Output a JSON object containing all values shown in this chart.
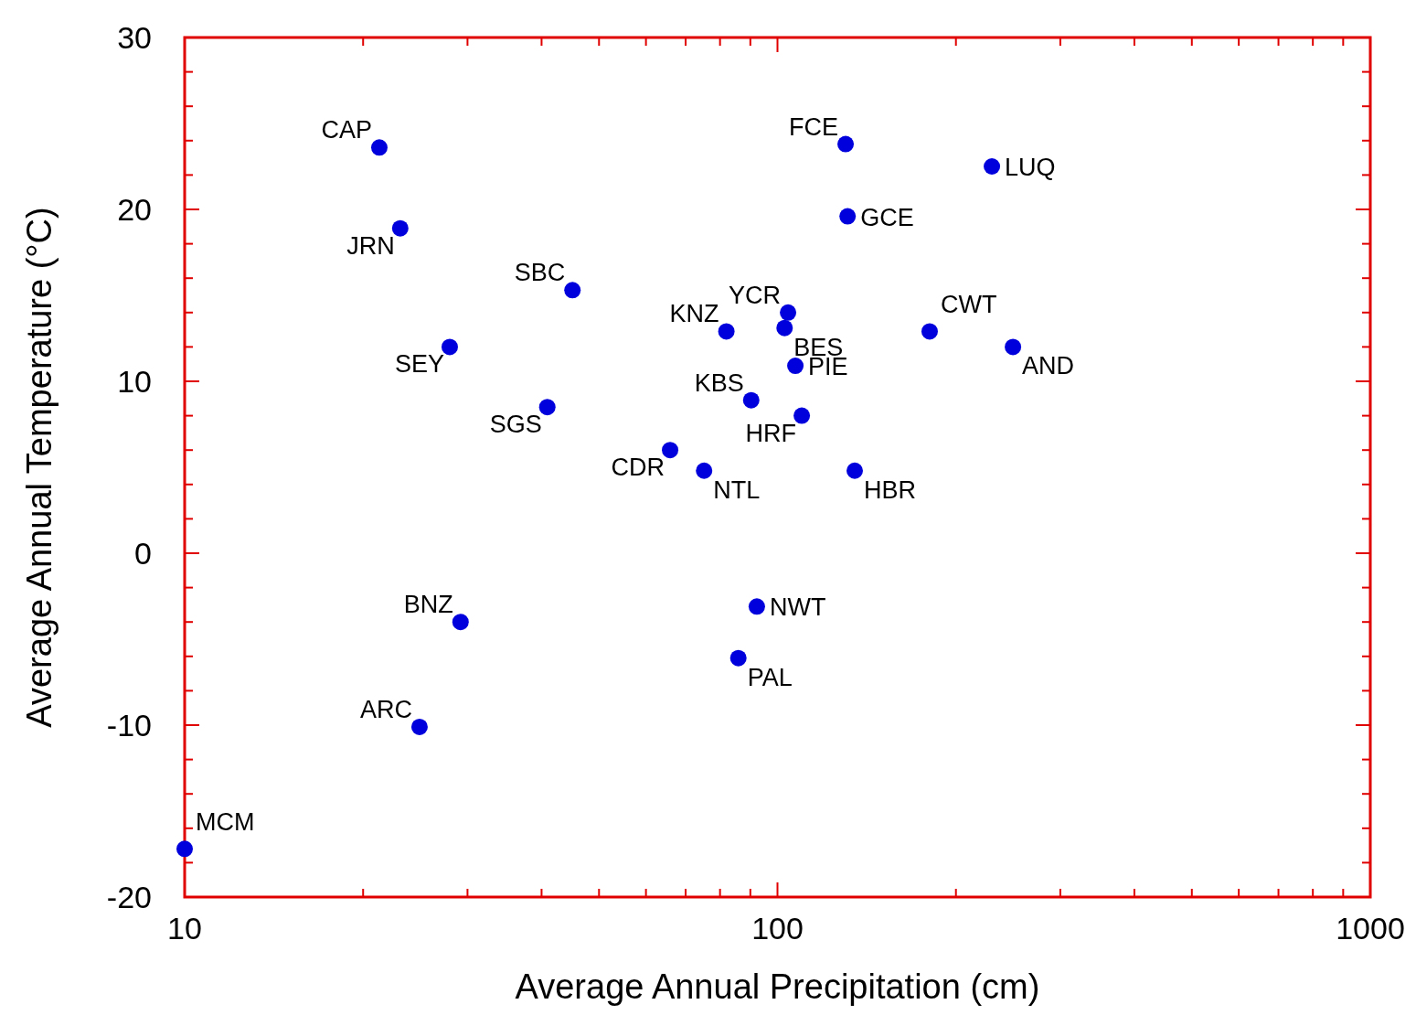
{
  "chart_data": {
    "type": "scatter",
    "xlabel": "Average Annual Precipitation (cm)",
    "ylabel": "Average Annual Temperature (°C)",
    "log": "x",
    "grid": false,
    "marker": "circle",
    "xlim": [
      10,
      1000
    ],
    "ylim": [
      -20,
      30
    ],
    "xticks": [
      10,
      {
        "value": 20,
        "label": null
      },
      {
        "value": 30,
        "label": null
      },
      {
        "value": 40,
        "label": null
      },
      {
        "value": 50,
        "label": null
      },
      {
        "value": 60,
        "label": null
      },
      {
        "value": 70,
        "label": null
      },
      {
        "value": 80,
        "label": null
      },
      {
        "value": 90,
        "label": null
      },
      100,
      {
        "value": 200,
        "label": null
      },
      {
        "value": 300,
        "label": null
      },
      {
        "value": 400,
        "label": null
      },
      {
        "value": 500,
        "label": null
      },
      {
        "value": 600,
        "label": null
      },
      {
        "value": 700,
        "label": null
      },
      {
        "value": 800,
        "label": null
      },
      {
        "value": 900,
        "label": null
      },
      1000
    ],
    "yticks": [
      -20,
      {
        "value": -18,
        "label": null
      },
      {
        "value": -16,
        "label": null
      },
      {
        "value": -14,
        "label": null
      },
      {
        "value": -12,
        "label": null
      },
      -10,
      {
        "value": -8,
        "label": null
      },
      {
        "value": -6,
        "label": null
      },
      {
        "value": -4,
        "label": null
      },
      {
        "value": -2,
        "label": null
      },
      0,
      {
        "value": 2,
        "label": null
      },
      {
        "value": 4,
        "label": null
      },
      {
        "value": 6,
        "label": null
      },
      {
        "value": 8,
        "label": null
      },
      10,
      {
        "value": 12,
        "label": null
      },
      {
        "value": 14,
        "label": null
      },
      {
        "value": 16,
        "label": null
      },
      {
        "value": 18,
        "label": null
      },
      20,
      {
        "value": 22,
        "label": null
      },
      {
        "value": 24,
        "label": null
      },
      {
        "value": 26,
        "label": null
      },
      {
        "value": 28,
        "label": null
      },
      30
    ],
    "series": [
      {
        "color": "#0000dd",
        "x": [
          21.3,
          23.1,
          45.1,
          28.0,
          40.9,
          65.9,
          75.2,
          82.0,
          90.3,
          104.2,
          102.8,
          107.2,
          109.9,
          130.3,
          131.3,
          135.0,
          180.6,
          230,
          249.6,
          92.3,
          85.9,
          29.2,
          24.9,
          10
        ],
        "values": [
          23.6,
          18.9,
          15.3,
          12.0,
          8.5,
          6.0,
          4.8,
          12.9,
          8.9,
          14.0,
          13.1,
          10.9,
          8.0,
          23.8,
          19.6,
          4.8,
          12.9,
          22.5,
          12.0,
          -3.1,
          -6.1,
          -4.0,
          -10.1,
          -17.2
        ]
      }
    ],
    "annotations": [
      {
        "text": "CAP",
        "x": 21.3,
        "y": 23.6
      },
      {
        "text": "JRN",
        "x": 23.1,
        "y": 18.9
      },
      {
        "text": "SBC",
        "x": 45.1,
        "y": 15.3
      },
      {
        "text": "SEY",
        "x": 28.0,
        "y": 12.0
      },
      {
        "text": "SGS",
        "x": 40.9,
        "y": 8.5
      },
      {
        "text": "CDR",
        "x": 65.9,
        "y": 6.0
      },
      {
        "text": "NTL",
        "x": 75.2,
        "y": 4.8
      },
      {
        "text": "KNZ",
        "x": 82.0,
        "y": 12.9
      },
      {
        "text": "KBS",
        "x": 90.3,
        "y": 8.9
      },
      {
        "text": "YCR",
        "x": 104.2,
        "y": 14.0
      },
      {
        "text": "BES",
        "x": 102.8,
        "y": 13.1
      },
      {
        "text": "PIE",
        "x": 107.2,
        "y": 10.9
      },
      {
        "text": "HRF",
        "x": 109.9,
        "y": 8.0
      },
      {
        "text": "FCE",
        "x": 130.3,
        "y": 23.8
      },
      {
        "text": "GCE",
        "x": 131.3,
        "y": 19.6
      },
      {
        "text": "HBR",
        "x": 135.0,
        "y": 4.8
      },
      {
        "text": "CWT",
        "x": 180.6,
        "y": 12.9
      },
      {
        "text": "LUQ",
        "x": 230,
        "y": 22.5
      },
      {
        "text": "AND",
        "x": 249.6,
        "y": 12.0
      },
      {
        "text": "NWT",
        "x": 92.3,
        "y": -3.1
      },
      {
        "text": "PAL",
        "x": 85.9,
        "y": -6.1
      },
      {
        "text": "BNZ",
        "x": 29.2,
        "y": -4.0
      },
      {
        "text": "ARC",
        "x": 24.9,
        "y": -10.1
      },
      {
        "text": "MCM",
        "x": 10,
        "y": -17.2
      }
    ]
  }
}
